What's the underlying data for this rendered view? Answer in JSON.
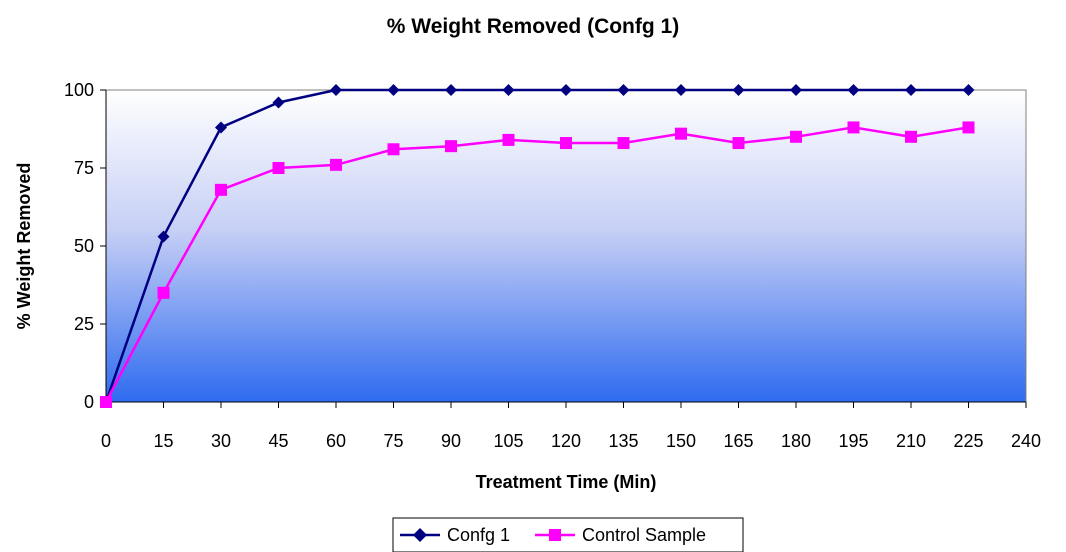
{
  "chart_data": {
    "type": "line",
    "title": "% Weight Removed (Confg 1)",
    "xlabel": "Treatment Time (Min)",
    "ylabel": "% Weight Removed",
    "xlim": [
      0,
      240
    ],
    "ylim": [
      0,
      100
    ],
    "x_ticks": [
      0,
      15,
      30,
      45,
      60,
      75,
      90,
      105,
      120,
      135,
      150,
      165,
      180,
      195,
      210,
      225,
      240
    ],
    "y_ticks": [
      0,
      25,
      50,
      75,
      100
    ],
    "x": [
      0,
      15,
      30,
      45,
      60,
      75,
      90,
      105,
      120,
      135,
      150,
      165,
      180,
      195,
      210,
      225
    ],
    "series": [
      {
        "name": "Confg 1",
        "color": "#000080",
        "marker": "diamond",
        "values": [
          0,
          53,
          88,
          96,
          100,
          100,
          100,
          100,
          100,
          100,
          100,
          100,
          100,
          100,
          100,
          100
        ]
      },
      {
        "name": "Control Sample",
        "color": "#FF00FF",
        "marker": "square",
        "values": [
          0,
          35,
          68,
          75,
          76,
          81,
          82,
          84,
          83,
          83,
          86,
          83,
          85,
          88,
          85,
          88
        ]
      }
    ],
    "grid": false,
    "legend": "bottom-center",
    "plot_background": "gradient white-to-blue"
  }
}
